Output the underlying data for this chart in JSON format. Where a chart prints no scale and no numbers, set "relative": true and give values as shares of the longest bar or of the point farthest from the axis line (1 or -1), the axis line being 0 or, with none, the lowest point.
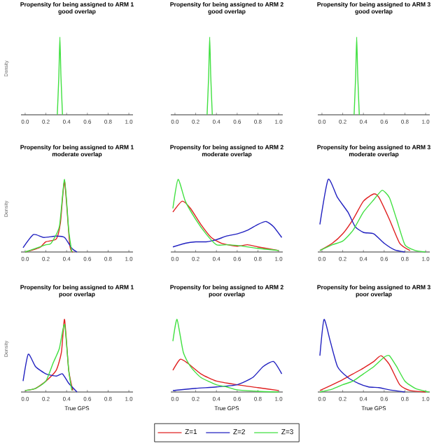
{
  "chart_data": [
    {
      "type": "line",
      "title": "Propensity for being assigned to ARM 1",
      "subtitle": "good overlap",
      "ylabel": "Density",
      "relative": true,
      "xlim": [
        -0.04,
        1.04
      ],
      "xticks": [
        {
          "value": 0,
          "label": "0.0"
        },
        {
          "value": 0.2,
          "label": "0.2"
        },
        {
          "value": 0.4,
          "label": "0.4"
        },
        {
          "value": 0.6,
          "label": "0.6"
        },
        {
          "value": 0.8,
          "label": "0.8"
        },
        {
          "value": 1,
          "label": "1.0"
        }
      ],
      "series": [
        {
          "color": "#40e040",
          "x": [
            0.31,
            0.325,
            0.335,
            0.345,
            0.36
          ],
          "values": [
            0,
            0.5,
            1,
            0.5,
            0
          ]
        }
      ]
    },
    {
      "type": "line",
      "title": "Propensity for being assigned to ARM 2",
      "subtitle": "good overlap",
      "relative": true,
      "xlim": [
        -0.04,
        1.04
      ],
      "xticks": [
        {
          "value": 0,
          "label": "0.0"
        },
        {
          "value": 0.2,
          "label": "0.2"
        },
        {
          "value": 0.4,
          "label": "0.4"
        },
        {
          "value": 0.6,
          "label": "0.6"
        },
        {
          "value": 0.8,
          "label": "0.8"
        },
        {
          "value": 1,
          "label": "1.0"
        }
      ],
      "series": [
        {
          "color": "#40e040",
          "x": [
            0.31,
            0.325,
            0.335,
            0.345,
            0.36
          ],
          "values": [
            0,
            0.5,
            1,
            0.5,
            0
          ]
        }
      ]
    },
    {
      "type": "line",
      "title": "Propensity for being assigned to ARM 3",
      "subtitle": "good overlap",
      "relative": true,
      "xlim": [
        -0.04,
        1.04
      ],
      "xticks": [
        {
          "value": 0,
          "label": "0.0"
        },
        {
          "value": 0.2,
          "label": "0.2"
        },
        {
          "value": 0.4,
          "label": "0.4"
        },
        {
          "value": 0.6,
          "label": "0.6"
        },
        {
          "value": 0.8,
          "label": "0.8"
        },
        {
          "value": 1,
          "label": "1.0"
        }
      ],
      "series": [
        {
          "color": "#40e040",
          "x": [
            0.31,
            0.325,
            0.335,
            0.345,
            0.36
          ],
          "values": [
            0,
            0.5,
            1,
            0.5,
            0
          ]
        }
      ]
    },
    {
      "type": "line",
      "title": "Propensity for being assigned to ARM 1",
      "subtitle": "moderate overlap",
      "ylabel": "Density",
      "relative": true,
      "xlim": [
        -0.04,
        1.04
      ],
      "xticks": [
        {
          "value": 0,
          "label": "0.0"
        },
        {
          "value": 0.2,
          "label": "0.2"
        },
        {
          "value": 0.4,
          "label": "0.4"
        },
        {
          "value": 0.6,
          "label": "0.6"
        },
        {
          "value": 0.8,
          "label": "0.8"
        },
        {
          "value": 1,
          "label": "1.0"
        }
      ],
      "series": [
        {
          "color": "#e02020",
          "x": [
            0,
            0.1,
            0.15,
            0.2,
            0.3,
            0.34,
            0.38,
            0.43,
            0.46
          ],
          "values": [
            0,
            0.04,
            0.07,
            0.14,
            0.18,
            0.4,
            0.97,
            0.1,
            0
          ]
        },
        {
          "color": "#2020c0",
          "x": [
            -0.02,
            0.08,
            0.18,
            0.3,
            0.38,
            0.45,
            0.5
          ],
          "values": [
            0.06,
            0.24,
            0.2,
            0.22,
            0.2,
            0.05,
            0
          ]
        },
        {
          "color": "#40e040",
          "x": [
            0,
            0.1,
            0.2,
            0.25,
            0.33,
            0.38,
            0.42,
            0.45
          ],
          "values": [
            0,
            0.05,
            0.1,
            0.12,
            0.35,
            1,
            0.3,
            0
          ]
        }
      ]
    },
    {
      "type": "line",
      "title": "Propensity for being assigned to ARM 2",
      "subtitle": "moderate overlap",
      "relative": true,
      "xlim": [
        -0.04,
        1.04
      ],
      "xticks": [
        {
          "value": 0,
          "label": "0.0"
        },
        {
          "value": 0.2,
          "label": "0.2"
        },
        {
          "value": 0.4,
          "label": "0.4"
        },
        {
          "value": 0.6,
          "label": "0.6"
        },
        {
          "value": 0.8,
          "label": "0.8"
        },
        {
          "value": 1,
          "label": "1.0"
        }
      ],
      "series": [
        {
          "color": "#e02020",
          "x": [
            -0.02,
            0.07,
            0.15,
            0.25,
            0.35,
            0.45,
            0.6,
            0.7,
            0.8,
            1.0
          ],
          "values": [
            0.55,
            0.7,
            0.6,
            0.38,
            0.2,
            0.12,
            0.08,
            0.1,
            0.07,
            0.02
          ]
        },
        {
          "color": "#2020c0",
          "x": [
            -0.02,
            0.1,
            0.2,
            0.3,
            0.4,
            0.5,
            0.6,
            0.7,
            0.8,
            0.88,
            0.95,
            1.03
          ],
          "values": [
            0.07,
            0.12,
            0.14,
            0.14,
            0.17,
            0.22,
            0.25,
            0.3,
            0.38,
            0.42,
            0.35,
            0.2
          ]
        },
        {
          "color": "#40e040",
          "x": [
            -0.02,
            0.03,
            0.1,
            0.2,
            0.3,
            0.4,
            0.5,
            0.6,
            0.8,
            1.0
          ],
          "values": [
            0.6,
            1,
            0.7,
            0.45,
            0.25,
            0.1,
            0.1,
            0.09,
            0.05,
            0.02
          ]
        }
      ]
    },
    {
      "type": "line",
      "title": "Propensity for being assigned to ARM 3",
      "subtitle": "moderate overlap",
      "relative": true,
      "xlim": [
        -0.04,
        1.04
      ],
      "xticks": [
        {
          "value": 0,
          "label": "0.0"
        },
        {
          "value": 0.2,
          "label": "0.2"
        },
        {
          "value": 0.4,
          "label": "0.4"
        },
        {
          "value": 0.6,
          "label": "0.6"
        },
        {
          "value": 0.8,
          "label": "0.8"
        },
        {
          "value": 1,
          "label": "1.0"
        }
      ],
      "series": [
        {
          "color": "#e02020",
          "x": [
            -0.02,
            0.1,
            0.2,
            0.3,
            0.4,
            0.5,
            0.55,
            0.65,
            0.75,
            0.85
          ],
          "values": [
            0.02,
            0.12,
            0.25,
            0.45,
            0.7,
            0.8,
            0.75,
            0.45,
            0.12,
            0.02
          ]
        },
        {
          "color": "#2020c0",
          "x": [
            -0.02,
            0.06,
            0.15,
            0.25,
            0.32,
            0.4,
            0.5,
            0.6,
            0.7,
            0.8
          ],
          "values": [
            0.38,
            1,
            0.75,
            0.55,
            0.35,
            0.27,
            0.25,
            0.12,
            0.03,
            0
          ]
        },
        {
          "color": "#40e040",
          "x": [
            -0.02,
            0.1,
            0.2,
            0.3,
            0.4,
            0.5,
            0.58,
            0.65,
            0.72,
            0.8,
            0.9,
            1.0
          ],
          "values": [
            0.02,
            0.1,
            0.15,
            0.3,
            0.55,
            0.72,
            0.85,
            0.75,
            0.45,
            0.1,
            0.02,
            0
          ]
        }
      ]
    },
    {
      "type": "line",
      "title": "Propensity for being assigned to ARM 1",
      "subtitle": "poor overlap",
      "xlabel": "True GPS",
      "ylabel": "Density",
      "relative": true,
      "xlim": [
        -0.04,
        1.04
      ],
      "xticks": [
        {
          "value": 0,
          "label": "0.0"
        },
        {
          "value": 0.2,
          "label": "0.2"
        },
        {
          "value": 0.4,
          "label": "0.4"
        },
        {
          "value": 0.6,
          "label": "0.6"
        },
        {
          "value": 0.8,
          "label": "0.8"
        },
        {
          "value": 1,
          "label": "1.0"
        }
      ],
      "series": [
        {
          "color": "#e02020",
          "x": [
            0,
            0.1,
            0.2,
            0.3,
            0.35,
            0.38,
            0.42,
            0.46
          ],
          "values": [
            0.02,
            0.05,
            0.15,
            0.3,
            0.55,
            1,
            0.3,
            0.02
          ]
        },
        {
          "color": "#2020c0",
          "x": [
            -0.02,
            0.03,
            0.1,
            0.2,
            0.3,
            0.36,
            0.42,
            0.5
          ],
          "values": [
            0.15,
            0.52,
            0.35,
            0.25,
            0.22,
            0.25,
            0.12,
            0
          ]
        },
        {
          "color": "#40e040",
          "x": [
            0,
            0.1,
            0.2,
            0.27,
            0.33,
            0.38,
            0.42,
            0.45
          ],
          "values": [
            0.02,
            0.05,
            0.15,
            0.4,
            0.6,
            0.93,
            0.3,
            0.02
          ]
        }
      ]
    },
    {
      "type": "line",
      "title": "Propensity for being assigned to ARM 2",
      "subtitle": "poor overlap",
      "xlabel": "True GPS",
      "relative": true,
      "legend": "bottom",
      "xlim": [
        -0.04,
        1.04
      ],
      "xticks": [
        {
          "value": 0,
          "label": "0.0"
        },
        {
          "value": 0.2,
          "label": "0.2"
        },
        {
          "value": 0.4,
          "label": "0.4"
        },
        {
          "value": 0.6,
          "label": "0.6"
        },
        {
          "value": 0.8,
          "label": "0.8"
        },
        {
          "value": 1,
          "label": "1.0"
        }
      ],
      "series": [
        {
          "name": "Z=1",
          "color": "#e02020",
          "x": [
            -0.02,
            0.05,
            0.12,
            0.25,
            0.4,
            0.6,
            0.8,
            1.0
          ],
          "values": [
            0.3,
            0.45,
            0.4,
            0.25,
            0.15,
            0.1,
            0.06,
            0.02
          ]
        },
        {
          "name": "Z=2",
          "color": "#2020c0",
          "x": [
            -0.02,
            0.2,
            0.4,
            0.6,
            0.75,
            0.85,
            0.95,
            1.03
          ],
          "values": [
            0.02,
            0.05,
            0.07,
            0.1,
            0.2,
            0.35,
            0.42,
            0.25
          ]
        },
        {
          "name": "Z=3",
          "color": "#40e040",
          "x": [
            -0.02,
            0.02,
            0.08,
            0.15,
            0.25,
            0.4,
            0.5,
            0.6,
            0.8,
            1.0
          ],
          "values": [
            0.7,
            1,
            0.55,
            0.35,
            0.2,
            0.1,
            0.07,
            0.03,
            0.01,
            0
          ]
        }
      ]
    },
    {
      "type": "line",
      "title": "Propensity for being assigned to ARM 3",
      "subtitle": "poor overlap",
      "xlabel": "True GPS",
      "relative": true,
      "xlim": [
        -0.04,
        1.04
      ],
      "xticks": [
        {
          "value": 0,
          "label": "0.0"
        },
        {
          "value": 0.2,
          "label": "0.2"
        },
        {
          "value": 0.4,
          "label": "0.4"
        },
        {
          "value": 0.6,
          "label": "0.6"
        },
        {
          "value": 0.8,
          "label": "0.8"
        },
        {
          "value": 1,
          "label": "1.0"
        }
      ],
      "series": [
        {
          "color": "#e02020",
          "x": [
            -0.02,
            0.1,
            0.2,
            0.3,
            0.4,
            0.5,
            0.57,
            0.65,
            0.75,
            0.85,
            1.0
          ],
          "values": [
            0.02,
            0.1,
            0.17,
            0.25,
            0.33,
            0.42,
            0.5,
            0.38,
            0.1,
            0.02,
            0
          ]
        },
        {
          "color": "#2020c0",
          "x": [
            -0.02,
            0.02,
            0.08,
            0.15,
            0.25,
            0.35,
            0.45,
            0.55,
            0.65,
            0.8
          ],
          "values": [
            0.5,
            1,
            0.7,
            0.35,
            0.2,
            0.12,
            0.07,
            0.06,
            0.03,
            0
          ]
        },
        {
          "color": "#40e040",
          "x": [
            -0.02,
            0.1,
            0.2,
            0.3,
            0.4,
            0.5,
            0.6,
            0.65,
            0.72,
            0.8,
            0.9,
            1.03
          ],
          "values": [
            0,
            0.04,
            0.1,
            0.15,
            0.25,
            0.35,
            0.48,
            0.5,
            0.35,
            0.15,
            0.05,
            0
          ]
        }
      ]
    }
  ]
}
